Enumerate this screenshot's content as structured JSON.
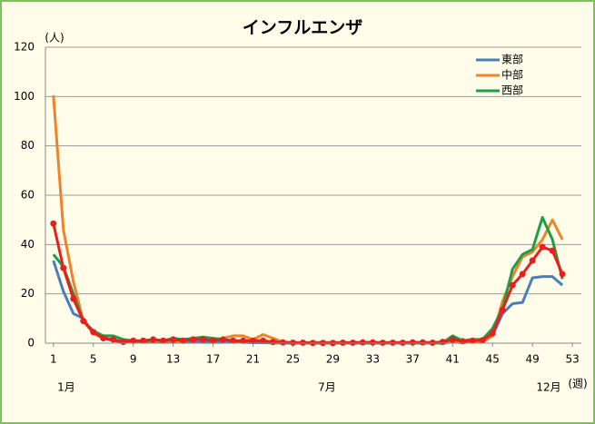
{
  "chart_data": {
    "type": "line",
    "title": "インフルエンザ",
    "y_label": "(人)",
    "x_label": "(週)",
    "month_labels": [
      "1月",
      "7月",
      "12月"
    ],
    "x": [
      1,
      2,
      3,
      4,
      5,
      6,
      7,
      8,
      9,
      10,
      11,
      12,
      13,
      14,
      15,
      16,
      17,
      18,
      19,
      20,
      21,
      22,
      23,
      24,
      25,
      26,
      27,
      28,
      29,
      30,
      31,
      32,
      33,
      34,
      35,
      36,
      37,
      38,
      39,
      40,
      41,
      42,
      43,
      44,
      45,
      46,
      47,
      48,
      49,
      50,
      51,
      52
    ],
    "xlim": [
      0.2,
      53.9
    ],
    "xticks": [
      1,
      5,
      9,
      13,
      17,
      21,
      25,
      29,
      33,
      37,
      41,
      45,
      49,
      53
    ],
    "ylim": [
      0,
      120
    ],
    "yticks": [
      0,
      20,
      40,
      60,
      80,
      100,
      120
    ],
    "grid": true,
    "legend": "top-right",
    "series": [
      {
        "name": "東部",
        "color": "#4a7ebb",
        "values": [
          33.5,
          21,
          12,
          10,
          4,
          2,
          1,
          0.5,
          0.3,
          0.5,
          0.5,
          0.5,
          0.5,
          0.3,
          0.5,
          0.3,
          0.3,
          0.3,
          0.5,
          0.3,
          0.2,
          0.2,
          0.1,
          0,
          0,
          0,
          0,
          0,
          0,
          0,
          0,
          0,
          0,
          0,
          0,
          0,
          0,
          0,
          0,
          0,
          0.5,
          0.2,
          0.5,
          0.5,
          3,
          12,
          16,
          16.5,
          26.5,
          27,
          27,
          23.5
        ]
      },
      {
        "name": "中部",
        "color": "#f0832a",
        "values": [
          100.5,
          46,
          25,
          9,
          4,
          2,
          1.5,
          0.5,
          0.5,
          1,
          1,
          1,
          1,
          0.5,
          2,
          1.5,
          1.5,
          2,
          3,
          3,
          1.5,
          3.5,
          2,
          0.5,
          0.3,
          0.3,
          0.3,
          0.3,
          0.3,
          0.3,
          0.3,
          0.3,
          0.3,
          0.3,
          0.3,
          0.3,
          0.3,
          0.3,
          0.3,
          0.3,
          1,
          0.5,
          0.5,
          0.5,
          3,
          17,
          27,
          35,
          37,
          42,
          50,
          42
        ]
      },
      {
        "name": "西部",
        "color": "#1e9e48",
        "values": [
          36,
          31,
          20,
          9,
          5,
          3,
          3,
          1.5,
          1,
          0.5,
          1.5,
          1,
          2,
          1.5,
          2,
          2.5,
          2,
          1.5,
          1,
          0.5,
          0.5,
          0.5,
          0.5,
          0.2,
          0.2,
          0.2,
          0.2,
          0.2,
          0.2,
          0.2,
          0.2,
          0.2,
          0.2,
          0.2,
          0.2,
          0.2,
          0.2,
          0.2,
          0.2,
          0.2,
          3,
          1,
          1.5,
          1.5,
          6,
          14,
          30,
          36,
          38,
          51,
          42,
          26
        ]
      },
      {
        "color": "#e8201c",
        "markers": true,
        "values": [
          48.5,
          30.5,
          18,
          9,
          4.5,
          2,
          1.5,
          0.5,
          1,
          1,
          1.5,
          1,
          1.5,
          1,
          1.5,
          1.5,
          1,
          1.5,
          1,
          1,
          1,
          1,
          0.5,
          0.3,
          0.2,
          0.2,
          0.1,
          0.1,
          0.1,
          0.2,
          0.2,
          0.3,
          0.3,
          0.2,
          0.2,
          0.2,
          0.3,
          0.3,
          0.2,
          0.5,
          1.5,
          0.8,
          1,
          1.2,
          4,
          13.5,
          23.5,
          28,
          33.5,
          39,
          37.5,
          28
        ]
      }
    ]
  }
}
